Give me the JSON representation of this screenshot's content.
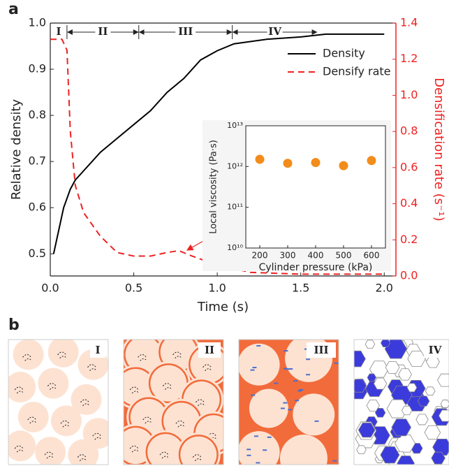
{
  "panels": [
    "a",
    "b"
  ],
  "chart_data": [
    {
      "type": "line",
      "x_label": "Time (s)",
      "y_label": "Relative density",
      "y2_label": "Densification rate (s⁻¹)",
      "xlim": [
        0,
        2.07
      ],
      "ylim": [
        0.452,
        1.0
      ],
      "y2lim": [
        0,
        1.4
      ],
      "xticks": [
        {
          "value": 0,
          "label": "0.0"
        },
        0.5,
        {
          "value": 1,
          "label": "1.0"
        },
        1.5,
        {
          "value": 2,
          "label": "2.0"
        }
      ],
      "yticks": [
        0.5,
        0.6,
        0.7,
        0.8,
        0.9,
        {
          "value": 1,
          "label": "1.0"
        }
      ],
      "y2ticks": [
        {
          "value": 0,
          "label": "0.0"
        },
        0.2,
        0.4,
        0.6,
        0.8,
        {
          "value": 1,
          "label": "1.0"
        },
        1.2,
        1.4
      ],
      "legend": "upper right",
      "series": [
        {
          "name": "Density",
          "color": "#000000",
          "dash": false,
          "x": [
            0.02,
            0.05,
            0.08,
            0.12,
            0.15,
            0.2,
            0.3,
            0.4,
            0.5,
            0.6,
            0.7,
            0.8,
            0.9,
            1.0,
            1.1,
            1.3,
            1.5,
            1.65,
            2.0
          ],
          "values": [
            0.5,
            0.55,
            0.6,
            0.64,
            0.66,
            0.68,
            0.72,
            0.75,
            0.78,
            0.81,
            0.85,
            0.88,
            0.92,
            0.94,
            0.955,
            0.965,
            0.97,
            0.976,
            0.976
          ]
        },
        {
          "name": "Densify rate",
          "color": "#ee2222",
          "dash": true,
          "axis": "y2",
          "x": [
            0.0,
            0.07,
            0.1,
            0.12,
            0.15,
            0.2,
            0.3,
            0.4,
            0.5,
            0.6,
            0.7,
            0.77,
            0.85,
            1.0,
            1.2,
            1.5,
            2.0
          ],
          "values": [
            1.31,
            1.31,
            1.25,
            0.8,
            0.5,
            0.35,
            0.22,
            0.13,
            0.11,
            0.11,
            0.13,
            0.14,
            0.11,
            0.06,
            0.02,
            0.01,
            0.01
          ]
        }
      ],
      "stages": [
        "I",
        "II",
        "III",
        "IV"
      ],
      "stage_bounds": [
        0,
        0.1,
        0.53,
        1.09,
        1.6
      ]
    },
    {
      "type": "scatter",
      "x_label": "Cylinder pressure (kPa)",
      "y_label": "Local viscosity (Pa·s)",
      "xlim": [
        150,
        650
      ],
      "ylim": [
        10000000000.0,
        10000000000000.0
      ],
      "yscale": "log",
      "xticks": [
        200,
        300,
        400,
        500,
        600
      ],
      "yticks": [
        {
          "value": 10000000000.0,
          "label": "10¹⁰"
        },
        {
          "value": 100000000000.0,
          "label": "10¹¹"
        },
        {
          "value": 1000000000000.0,
          "label": "10¹²"
        },
        {
          "value": 10000000000000.0,
          "label": "10¹³"
        }
      ],
      "color": "#f28c1a",
      "x": [
        200,
        300,
        400,
        500,
        600
      ],
      "values": [
        1500000000000.0,
        1200000000000.0,
        1250000000000.0,
        1050000000000.0,
        1400000000000.0
      ]
    }
  ],
  "diagram_labels": [
    "I",
    "II",
    "III",
    "IV"
  ]
}
